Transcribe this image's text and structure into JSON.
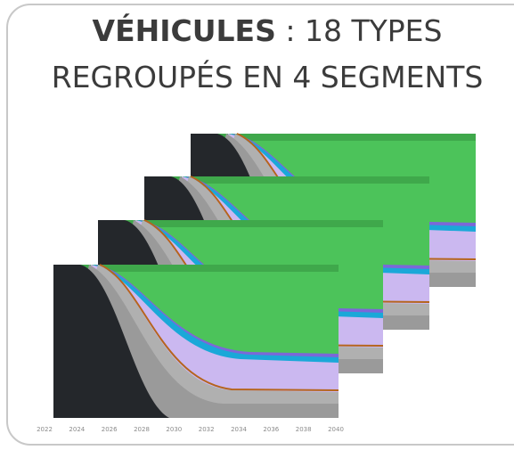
{
  "title": {
    "bold": "VÉHICULES",
    "rest": " : 18 TYPES",
    "line2": "REGROUPÉS EN 4 SEGMENTS"
  },
  "x_labels": [
    "2022",
    "2024",
    "2026",
    "2028",
    "2030",
    "2032",
    "2034",
    "2036",
    "2038",
    "2040"
  ]
}
